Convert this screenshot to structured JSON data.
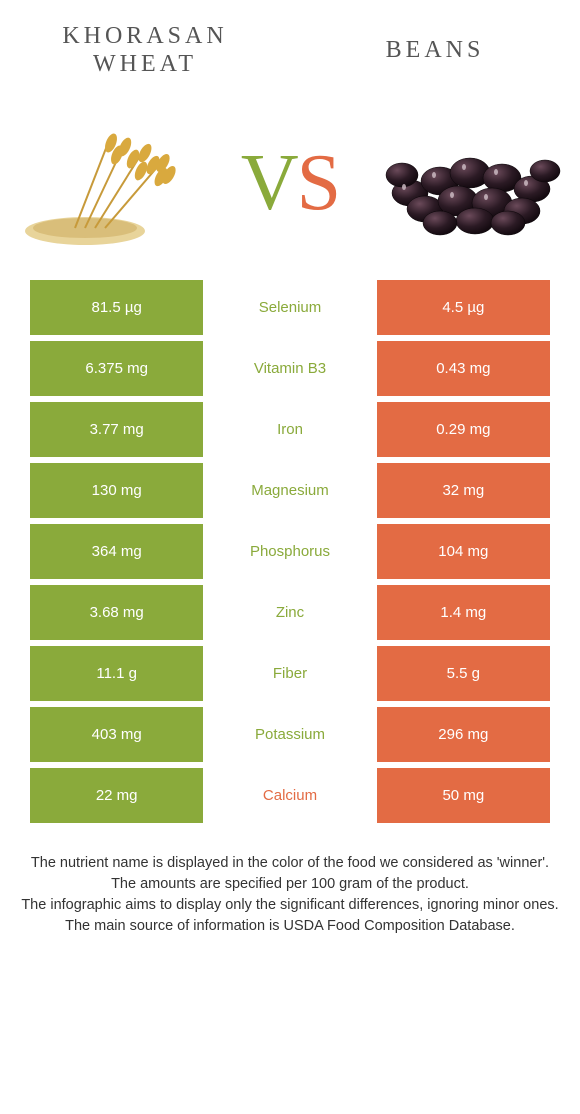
{
  "colors": {
    "left": "#8aaa3b",
    "right": "#e36b44",
    "row_bg": "#ffffff",
    "text_white": "#ffffff"
  },
  "header": {
    "left_title": "Khorasan wheat",
    "right_title": "Beans",
    "vs_v": "V",
    "vs_s": "S"
  },
  "rows": [
    {
      "left": "81.5 µg",
      "name": "Selenium",
      "right": "4.5 µg",
      "winner": "left"
    },
    {
      "left": "6.375 mg",
      "name": "Vitamin B3",
      "right": "0.43 mg",
      "winner": "left"
    },
    {
      "left": "3.77 mg",
      "name": "Iron",
      "right": "0.29 mg",
      "winner": "left"
    },
    {
      "left": "130 mg",
      "name": "Magnesium",
      "right": "32 mg",
      "winner": "left"
    },
    {
      "left": "364 mg",
      "name": "Phosphorus",
      "right": "104 mg",
      "winner": "left"
    },
    {
      "left": "3.68 mg",
      "name": "Zinc",
      "right": "1.4 mg",
      "winner": "left"
    },
    {
      "left": "11.1 g",
      "name": "Fiber",
      "right": "5.5 g",
      "winner": "left"
    },
    {
      "left": "403 mg",
      "name": "Potassium",
      "right": "296 mg",
      "winner": "left"
    },
    {
      "left": "22 mg",
      "name": "Calcium",
      "right": "50 mg",
      "winner": "right"
    }
  ],
  "footer": {
    "l1": "The nutrient name is displayed in the color of the food we considered as 'winner'.",
    "l2": "The amounts are specified per 100 gram of the product.",
    "l3": "The infographic aims to display only the significant differences, ignoring minor ones.",
    "l4": "The main source of information is USDA Food Composition Database."
  }
}
